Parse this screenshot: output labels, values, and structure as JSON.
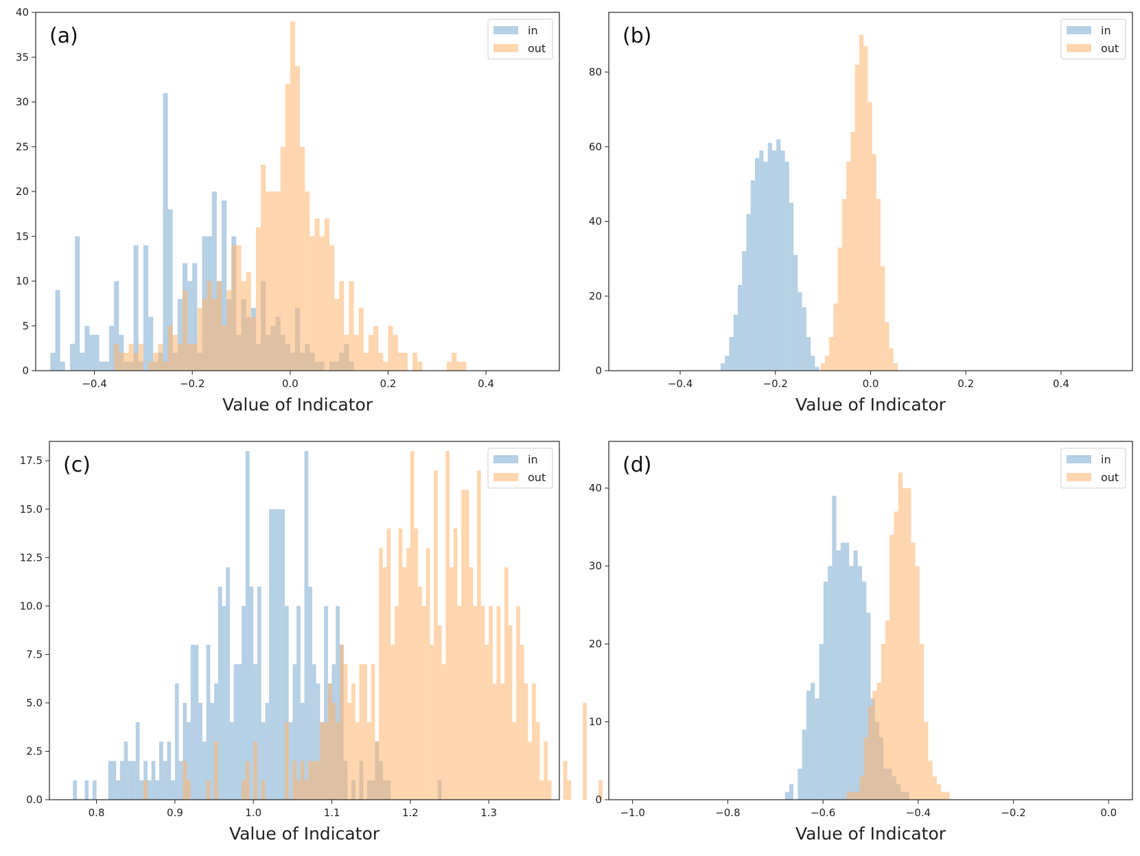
{
  "colors": {
    "in": "#7aaad0",
    "out": "#ffb46e",
    "frame": "#222222"
  },
  "chart_data": [
    {
      "type": "bar",
      "panel": "(a)",
      "xlabel": "Value of Indicator",
      "xlim": [
        -0.52,
        0.55
      ],
      "ylim": [
        0,
        40
      ],
      "xticks": [
        -0.4,
        -0.2,
        0.0,
        0.2,
        0.4
      ],
      "xtick_labels": [
        "−0.4",
        "−0.2",
        "0.0",
        "0.2",
        "0.4"
      ],
      "yticks": [
        0,
        5,
        10,
        15,
        20,
        25,
        30,
        35,
        40
      ],
      "ytick_labels": [
        "0",
        "5",
        "10",
        "15",
        "20",
        "25",
        "30",
        "35",
        "40"
      ],
      "legend": [
        "in",
        "out"
      ],
      "legend_position": "top-right",
      "alpha": 0.55,
      "series": [
        {
          "name": "in",
          "color": "#7aaad0",
          "start": -0.49,
          "width": 0.01,
          "counts": [
            2,
            9,
            1,
            0,
            3,
            15,
            2,
            5,
            4,
            4,
            1,
            1,
            5,
            10,
            4,
            1,
            1,
            14,
            1,
            14,
            6,
            1,
            2,
            31,
            18,
            2,
            8,
            12,
            10,
            12,
            2,
            15,
            15,
            20,
            10,
            19,
            8,
            15,
            4,
            8,
            6,
            7,
            3,
            10,
            4,
            5,
            6,
            4,
            3,
            2,
            7,
            2,
            3,
            2,
            1,
            1,
            0,
            1,
            1,
            2,
            3,
            1
          ]
        },
        {
          "name": "out",
          "color": "#ffb46e",
          "start": -0.36,
          "width": 0.01,
          "counts": [
            3,
            2,
            2,
            3,
            2,
            3,
            0,
            1,
            2,
            3,
            1,
            5,
            4,
            3,
            9,
            3,
            3,
            7,
            8,
            10,
            8,
            10,
            5,
            9,
            14,
            14,
            10,
            11,
            6,
            16,
            23,
            20,
            20,
            20,
            25,
            32,
            39,
            34,
            25,
            20,
            15,
            17,
            15,
            17,
            14,
            8,
            10,
            4,
            10,
            4,
            7,
            2,
            4,
            5,
            2,
            1,
            5,
            4,
            2,
            2,
            0,
            2,
            1,
            0,
            0,
            0,
            0,
            0,
            1,
            2,
            1,
            1
          ]
        }
      ]
    },
    {
      "type": "bar",
      "panel": "(b)",
      "xlabel": "Value of Indicator",
      "xlim": [
        -0.55,
        0.55
      ],
      "ylim": [
        0,
        96
      ],
      "xticks": [
        -0.4,
        -0.2,
        0.0,
        0.2,
        0.4
      ],
      "xtick_labels": [
        "−0.4",
        "−0.2",
        "0.0",
        "0.2",
        "0.4"
      ],
      "yticks": [
        0,
        20,
        40,
        60,
        80
      ],
      "ytick_labels": [
        "0",
        "20",
        "40",
        "60",
        "80"
      ],
      "legend": [
        "in",
        "out"
      ],
      "legend_position": "top-right",
      "alpha": 0.55,
      "series": [
        {
          "name": "in",
          "color": "#7aaad0",
          "start": -0.315,
          "width": 0.009,
          "counts": [
            2,
            4,
            9,
            15,
            23,
            32,
            42,
            51,
            57,
            59,
            56,
            61,
            59,
            62,
            59,
            56,
            45,
            31,
            21,
            17,
            9,
            4,
            1
          ]
        },
        {
          "name": "out",
          "color": "#ffb46e",
          "start": -0.105,
          "width": 0.009,
          "counts": [
            2,
            4,
            9,
            18,
            33,
            46,
            56,
            64,
            82,
            90,
            87,
            72,
            58,
            46,
            28,
            13,
            6,
            2
          ]
        }
      ]
    },
    {
      "type": "bar",
      "panel": "(c)",
      "xlabel": "Value of Indicator",
      "xlim": [
        0.74,
        1.39
      ],
      "ylim": [
        0,
        18.5
      ],
      "xticks": [
        0.8,
        0.9,
        1.0,
        1.1,
        1.2,
        1.3
      ],
      "xtick_labels": [
        "0.8",
        "0.9",
        "1.0",
        "1.1",
        "1.2",
        "1.3"
      ],
      "yticks": [
        0,
        2.5,
        5.0,
        7.5,
        10.0,
        12.5,
        15.0,
        17.5
      ],
      "ytick_labels": [
        "0.0",
        "2.5",
        "5.0",
        "7.5",
        "10.0",
        "12.5",
        "15.0",
        "17.5"
      ],
      "legend": [
        "in",
        "out"
      ],
      "legend_position": "top-right",
      "alpha": 0.55,
      "series": [
        {
          "name": "in",
          "color": "#7aaad0",
          "start": 0.77,
          "width": 0.005,
          "counts": [
            1,
            0,
            0,
            1,
            0,
            1,
            0,
            0,
            0,
            2,
            2,
            1,
            2,
            3,
            2,
            2,
            4,
            1,
            2,
            1,
            2,
            1,
            3,
            2,
            3,
            1,
            6,
            2,
            5,
            4,
            8,
            8,
            5,
            3,
            8,
            5,
            6,
            11,
            10,
            12,
            4,
            7,
            7,
            10,
            18,
            11,
            7,
            11,
            4,
            5,
            15,
            15,
            15,
            15,
            10,
            4,
            7,
            10,
            5,
            18,
            11,
            7,
            6,
            4,
            10,
            6,
            7,
            10,
            8,
            2,
            0,
            1,
            0,
            2,
            0,
            1,
            1,
            3,
            2,
            1,
            1,
            0,
            0,
            0,
            0,
            0,
            0,
            0,
            0,
            0,
            0,
            0,
            0,
            1,
            0
          ]
        },
        {
          "name": "out",
          "color": "#ffb46e",
          "start": 0.86,
          "width": 0.005,
          "counts": [
            1,
            0,
            0,
            0,
            0,
            0,
            0,
            0,
            0,
            0,
            2,
            1,
            0,
            0,
            0,
            0,
            1,
            0,
            3,
            0,
            0,
            0,
            0,
            0,
            0,
            1,
            2,
            0,
            3,
            0,
            1,
            0,
            0,
            0,
            0,
            0,
            4,
            0,
            2,
            1,
            2,
            1,
            2,
            2,
            2,
            4,
            4,
            6,
            5,
            4,
            8,
            7,
            5,
            6,
            4,
            7,
            7,
            4,
            7,
            3,
            13,
            12,
            14,
            8,
            10,
            14,
            12,
            13,
            18,
            14,
            11,
            10,
            13,
            8,
            17,
            9,
            7,
            18,
            12,
            14,
            10,
            16,
            16,
            12,
            10,
            17,
            10,
            8,
            10,
            6,
            10,
            6,
            12,
            9,
            4,
            10,
            8,
            6,
            3,
            6,
            4,
            1,
            3,
            1,
            0,
            0,
            0,
            2,
            1,
            0,
            0,
            0,
            5,
            0,
            0,
            0,
            1
          ]
        }
      ]
    },
    {
      "type": "bar",
      "panel": "(d)",
      "xlabel": "Value of Indicator",
      "xlim": [
        -1.05,
        0.05
      ],
      "ylim": [
        0,
        46
      ],
      "xticks": [
        -1.0,
        -0.8,
        -0.6,
        -0.4,
        -0.2,
        0.0
      ],
      "xtick_labels": [
        "−1.0",
        "−0.8",
        "−0.6",
        "−0.4",
        "−0.2",
        "0.0"
      ],
      "yticks": [
        0,
        10,
        20,
        30,
        40
      ],
      "ytick_labels": [
        "0",
        "10",
        "20",
        "30",
        "40"
      ],
      "legend": [
        "in",
        "out"
      ],
      "legend_position": "top-right",
      "alpha": 0.55,
      "series": [
        {
          "name": "in",
          "color": "#7aaad0",
          "start": -0.68,
          "width": 0.009,
          "counts": [
            1,
            2,
            0,
            4,
            9,
            14,
            15,
            13,
            20,
            28,
            30,
            39,
            32,
            33,
            33,
            30,
            32,
            30,
            28,
            24,
            13,
            10,
            8,
            4,
            4,
            3,
            2,
            1,
            1,
            0
          ]
        },
        {
          "name": "out",
          "color": "#ffb46e",
          "start": -0.55,
          "width": 0.009,
          "counts": [
            1,
            1,
            1,
            3,
            8,
            12,
            14,
            15,
            20,
            23,
            34,
            37,
            42,
            40,
            40,
            33,
            30,
            20,
            10,
            5,
            3,
            2,
            1,
            1
          ]
        }
      ]
    }
  ]
}
